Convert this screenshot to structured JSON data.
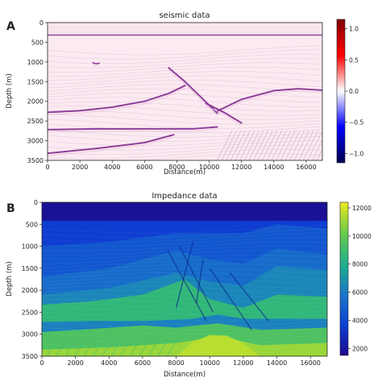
{
  "chart_data": [
    {
      "panel_label": "A",
      "type": "heatmap",
      "title": "seismic data",
      "xlabel": "Distance(m)",
      "ylabel": "Depth (m)",
      "xlim": [
        0,
        17000
      ],
      "ylim": [
        3500,
        0
      ],
      "x_ticks": [
        0,
        2000,
        4000,
        6000,
        8000,
        10000,
        12000,
        14000,
        16000
      ],
      "y_ticks": [
        0,
        500,
        1000,
        1500,
        2000,
        2500,
        3000,
        3500
      ],
      "colorbar": {
        "colormap": "seismic",
        "range": [
          -1.15,
          1.15
        ],
        "ticks": [
          "1.0",
          "0.5",
          "0.0",
          "−0.5",
          "−1.0"
        ]
      },
      "reflectors": [
        {
          "x": [
            0,
            2000,
            4000,
            6000,
            7500,
            8500
          ],
          "depth": [
            2280,
            2240,
            2150,
            2000,
            1800,
            1600
          ]
        },
        {
          "x": [
            0,
            3000,
            6000,
            9000,
            10500
          ],
          "depth": [
            2720,
            2700,
            2700,
            2700,
            2650
          ]
        },
        {
          "x": [
            10500,
            12000,
            14000,
            15500,
            17000
          ],
          "depth": [
            2250,
            1950,
            1730,
            1680,
            1720
          ]
        },
        {
          "x": [
            0,
            3000,
            6000,
            7800
          ],
          "depth": [
            3320,
            3200,
            3050,
            2850
          ]
        },
        {
          "x": [
            7500,
            8500,
            9500,
            10500
          ],
          "depth": [
            1150,
            1500,
            1900,
            2300
          ]
        },
        {
          "x": [
            9800,
            11000,
            12000
          ],
          "depth": [
            2050,
            2300,
            2550
          ]
        },
        {
          "x": [
            2800,
            3000,
            3200
          ],
          "depth": [
            1020,
            1050,
            1030
          ]
        }
      ]
    },
    {
      "panel_label": "B",
      "type": "heatmap",
      "title": "Impedance data",
      "xlabel": "Distance(m)",
      "ylabel": "Depth (m)",
      "xlim": [
        0,
        17000
      ],
      "ylim": [
        3500,
        0
      ],
      "x_ticks": [
        0,
        2000,
        4000,
        6000,
        8000,
        10000,
        12000,
        14000,
        16000
      ],
      "y_ticks": [
        0,
        500,
        1000,
        1500,
        2000,
        2500,
        3000,
        3500
      ],
      "colorbar": {
        "colormap": "viridis-like",
        "range": [
          1500,
          12400
        ],
        "ticks": [
          12000,
          10000,
          8000,
          6000,
          4000,
          2000
        ]
      },
      "layers": [
        {
          "impedance": 1800,
          "top_x": [
            0,
            17000
          ],
          "top_depth": [
            0,
            0
          ]
        },
        {
          "impedance": 3600,
          "top_x": [
            0,
            17000
          ],
          "top_depth": [
            420,
            420
          ]
        },
        {
          "impedance": 4600,
          "top_x": [
            0,
            4000,
            8000,
            12000,
            14000,
            17000
          ],
          "top_depth": [
            1000,
            900,
            700,
            700,
            500,
            600
          ]
        },
        {
          "impedance": 5400,
          "top_x": [
            0,
            4000,
            8000,
            10000,
            12000,
            14000,
            17000
          ],
          "top_depth": [
            1700,
            1500,
            1100,
            1300,
            1400,
            1050,
            1200
          ]
        },
        {
          "impedance": 6400,
          "top_x": [
            0,
            4000,
            8000,
            10000,
            12000,
            14000,
            17000
          ],
          "top_depth": [
            2100,
            1950,
            1600,
            1800,
            1900,
            1450,
            1550
          ]
        },
        {
          "impedance": 8600,
          "top_x": [
            0,
            3000,
            6000,
            8500,
            10000,
            12000,
            14000,
            17000
          ],
          "top_depth": [
            2330,
            2250,
            2100,
            1750,
            2200,
            2400,
            2100,
            2150
          ]
        },
        {
          "impedance": 6200,
          "top_x": [
            0,
            3000,
            6000,
            9000,
            10500,
            12000,
            17000
          ],
          "top_depth": [
            2720,
            2700,
            2700,
            2650,
            2550,
            2650,
            2650
          ]
        },
        {
          "impedance": 9400,
          "top_x": [
            0,
            3000,
            6000,
            8000,
            10500,
            13000,
            17000
          ],
          "top_depth": [
            2950,
            2880,
            2800,
            2850,
            2750,
            2900,
            2850
          ]
        },
        {
          "impedance": 11000,
          "top_x": [
            0,
            4000,
            8000,
            10500,
            13000,
            17000
          ],
          "top_depth": [
            3350,
            3300,
            3200,
            3050,
            3250,
            3200
          ]
        }
      ],
      "bright_band": {
        "impedance": 11600,
        "x": [
          8000,
          9000,
          10000,
          11000,
          12000,
          13000
        ],
        "depth": [
          3500,
          3180,
          3020,
          3030,
          3200,
          3500
        ]
      }
    }
  ]
}
